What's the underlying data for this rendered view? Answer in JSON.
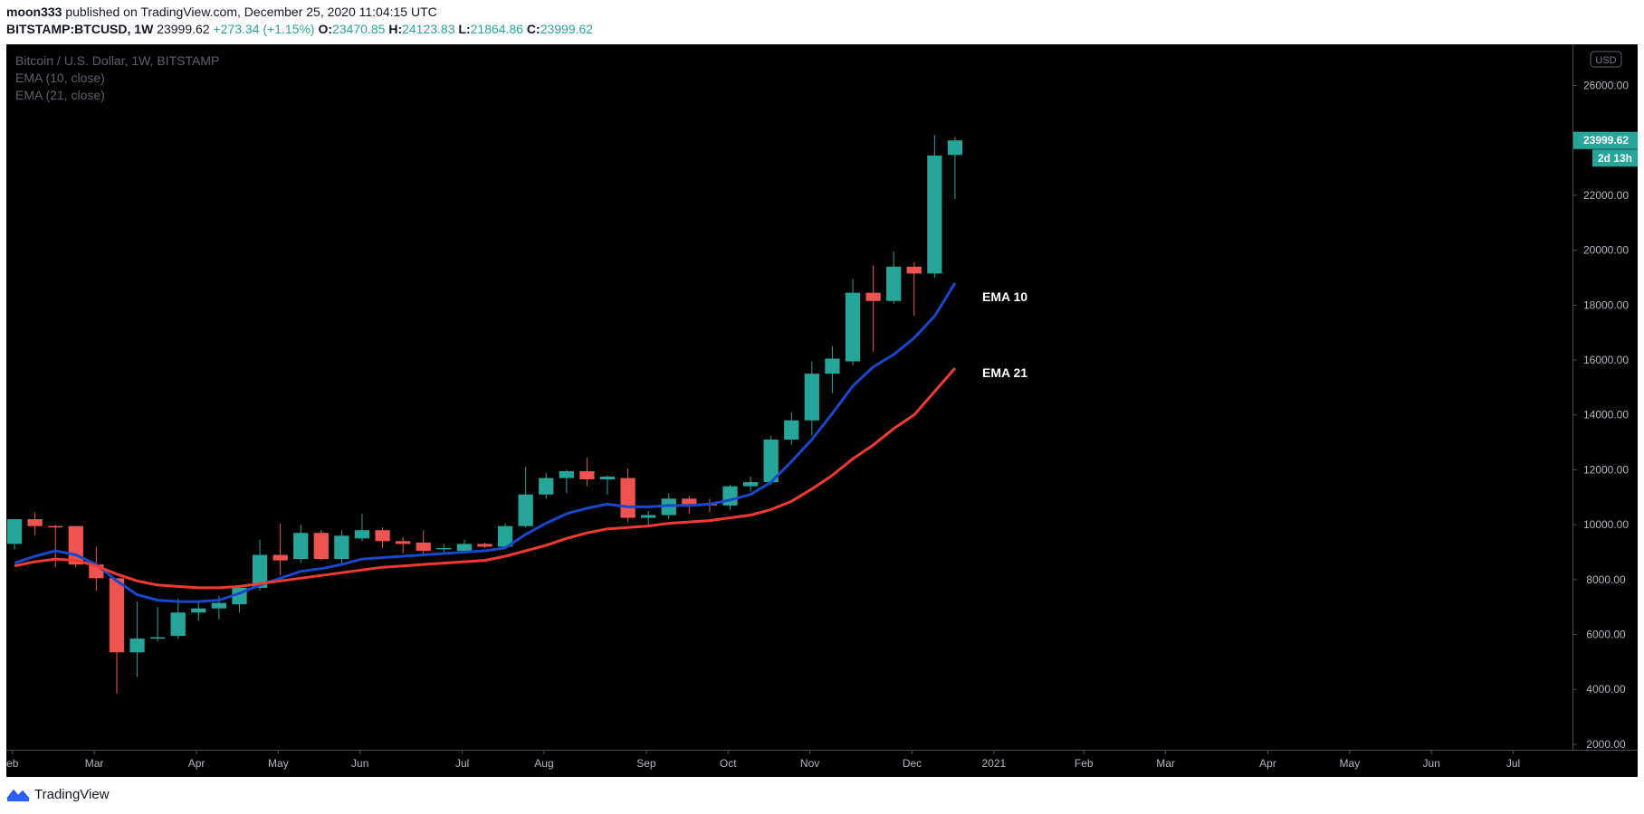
{
  "header": {
    "author": "moon333",
    "published": "published on TradingView.com, December 25, 2020 11:04:15 UTC",
    "symbol": "BITSTAMP:BTCUSD, 1W",
    "price": "23999.62",
    "change": "+273.34 (+1.15%)",
    "o_label": "O:",
    "o": "23470.85",
    "h_label": "H:",
    "h": "24123.83",
    "l_label": "L:",
    "l": "21864.86",
    "c_label": "C:",
    "c": "23999.62"
  },
  "legend": {
    "title": "Bitcoin / U.S. Dollar, 1W, BITSTAMP",
    "ema1": "EMA (10, close)",
    "ema2": "EMA (21, close)"
  },
  "badges": {
    "currency": "USD",
    "price": "23999.62",
    "countdown": "2d 13h"
  },
  "footer": {
    "brand": "TradingView"
  },
  "colors": {
    "up": "#26a69a",
    "down": "#ef5350",
    "ema10": "#1848cc",
    "ema21": "#f23a30",
    "background": "#000000",
    "axis_text": "#b2b5be"
  },
  "chart_data": {
    "type": "candlestick",
    "title": "Bitcoin / U.S. Dollar, 1W, BITSTAMP",
    "ylim": [
      1800,
      27500
    ],
    "y_ticks": [
      2000,
      4000,
      6000,
      8000,
      10000,
      12000,
      14000,
      16000,
      18000,
      20000,
      22000,
      24000,
      26000
    ],
    "y_tick_labels": [
      "2000.00",
      "4000.00",
      "6000.00",
      "8000.00",
      "10000.00",
      "12000.00",
      "14000.00",
      "16000.00",
      "18000.00",
      "20000.00",
      "22000.00",
      "24000.00",
      "26000.00"
    ],
    "x_ticks": [
      {
        "label": "eb",
        "week": -0.1
      },
      {
        "label": "Mar",
        "week": 3.9
      },
      {
        "label": "Apr",
        "week": 8.9
      },
      {
        "label": "May",
        "week": 12.9
      },
      {
        "label": "Jun",
        "week": 16.9
      },
      {
        "label": "Jul",
        "week": 21.9
      },
      {
        "label": "Aug",
        "week": 25.9
      },
      {
        "label": "Sep",
        "week": 30.9
      },
      {
        "label": "Oct",
        "week": 34.9
      },
      {
        "label": "Nov",
        "week": 38.9
      },
      {
        "label": "Dec",
        "week": 43.9
      },
      {
        "label": "2021",
        "week": 47.9
      },
      {
        "label": "Feb",
        "week": 52.3
      },
      {
        "label": "Mar",
        "week": 56.3
      },
      {
        "label": "Apr",
        "week": 61.3
      },
      {
        "label": "May",
        "week": 65.3
      },
      {
        "label": "Jun",
        "week": 69.3
      },
      {
        "label": "Jul",
        "week": 73.3
      }
    ],
    "x_range": [
      -0.4,
      76.2
    ],
    "candles": [
      {
        "o": 9300,
        "h": 10200,
        "l": 9100,
        "c": 10200
      },
      {
        "o": 10200,
        "h": 10450,
        "l": 9600,
        "c": 9950
      },
      {
        "o": 9950,
        "h": 10000,
        "l": 8450,
        "c": 9900
      },
      {
        "o": 9950,
        "h": 9950,
        "l": 8450,
        "c": 8550
      },
      {
        "o": 8550,
        "h": 9200,
        "l": 7600,
        "c": 8050
      },
      {
        "o": 8050,
        "h": 8050,
        "l": 3850,
        "c": 5350
      },
      {
        "o": 5350,
        "h": 7200,
        "l": 4450,
        "c": 5850
      },
      {
        "o": 5850,
        "h": 7000,
        "l": 5750,
        "c": 5900
      },
      {
        "o": 5950,
        "h": 7300,
        "l": 5850,
        "c": 6800
      },
      {
        "o": 6800,
        "h": 7200,
        "l": 6500,
        "c": 6950
      },
      {
        "o": 6950,
        "h": 7400,
        "l": 6550,
        "c": 7150
      },
      {
        "o": 7100,
        "h": 7750,
        "l": 6800,
        "c": 7700
      },
      {
        "o": 7700,
        "h": 9450,
        "l": 7600,
        "c": 8900
      },
      {
        "o": 8900,
        "h": 10050,
        "l": 8150,
        "c": 8700
      },
      {
        "o": 8750,
        "h": 10000,
        "l": 8600,
        "c": 9700
      },
      {
        "o": 9700,
        "h": 9800,
        "l": 8700,
        "c": 8750
      },
      {
        "o": 8750,
        "h": 9800,
        "l": 8500,
        "c": 9600
      },
      {
        "o": 9500,
        "h": 10400,
        "l": 9400,
        "c": 9800
      },
      {
        "o": 9800,
        "h": 9900,
        "l": 9150,
        "c": 9400
      },
      {
        "o": 9400,
        "h": 9550,
        "l": 8950,
        "c": 9300
      },
      {
        "o": 9350,
        "h": 9800,
        "l": 8850,
        "c": 9050
      },
      {
        "o": 9100,
        "h": 9300,
        "l": 8900,
        "c": 9150
      },
      {
        "o": 9050,
        "h": 9450,
        "l": 8950,
        "c": 9300
      },
      {
        "o": 9300,
        "h": 9350,
        "l": 9150,
        "c": 9200
      },
      {
        "o": 9200,
        "h": 10050,
        "l": 9150,
        "c": 9950
      },
      {
        "o": 9950,
        "h": 12100,
        "l": 9900,
        "c": 11100
      },
      {
        "o": 11100,
        "h": 11900,
        "l": 10950,
        "c": 11700
      },
      {
        "o": 11700,
        "h": 12000,
        "l": 11150,
        "c": 11950
      },
      {
        "o": 11950,
        "h": 12450,
        "l": 11400,
        "c": 11650
      },
      {
        "o": 11650,
        "h": 11800,
        "l": 11100,
        "c": 11750
      },
      {
        "o": 11700,
        "h": 12050,
        "l": 10100,
        "c": 10250
      },
      {
        "o": 10250,
        "h": 10500,
        "l": 9900,
        "c": 10350
      },
      {
        "o": 10350,
        "h": 11150,
        "l": 10200,
        "c": 10950
      },
      {
        "o": 10950,
        "h": 11050,
        "l": 10400,
        "c": 10750
      },
      {
        "o": 10750,
        "h": 10950,
        "l": 10450,
        "c": 10700
      },
      {
        "o": 10700,
        "h": 11450,
        "l": 10550,
        "c": 11400
      },
      {
        "o": 11400,
        "h": 11750,
        "l": 11200,
        "c": 11550
      },
      {
        "o": 11550,
        "h": 13250,
        "l": 11450,
        "c": 13100
      },
      {
        "o": 13100,
        "h": 14100,
        "l": 12900,
        "c": 13800
      },
      {
        "o": 13800,
        "h": 15950,
        "l": 13250,
        "c": 15500
      },
      {
        "o": 15500,
        "h": 16500,
        "l": 14800,
        "c": 16050
      },
      {
        "o": 15950,
        "h": 18950,
        "l": 15800,
        "c": 18450
      },
      {
        "o": 18450,
        "h": 19450,
        "l": 16300,
        "c": 18150
      },
      {
        "o": 18150,
        "h": 19950,
        "l": 18050,
        "c": 19400
      },
      {
        "o": 19400,
        "h": 19550,
        "l": 17600,
        "c": 19150
      },
      {
        "o": 19150,
        "h": 24200,
        "l": 19000,
        "c": 23450
      },
      {
        "o": 23470.85,
        "h": 24123.83,
        "l": 21864.86,
        "c": 23999.62
      }
    ],
    "series": [
      {
        "name": "EMA 10",
        "values": [
          8600,
          8850,
          9050,
          8900,
          8550,
          7950,
          7450,
          7250,
          7200,
          7200,
          7250,
          7500,
          7800,
          8050,
          8300,
          8400,
          8550,
          8750,
          8800,
          8850,
          8900,
          8950,
          9000,
          9050,
          9150,
          9650,
          10050,
          10400,
          10600,
          10750,
          10650,
          10650,
          10700,
          10700,
          10750,
          10900,
          11100,
          11550,
          12300,
          13100,
          14050,
          15050,
          15750,
          16200,
          16800,
          17600,
          18800
        ]
      },
      {
        "name": "EMA 21",
        "values": [
          8500,
          8650,
          8750,
          8700,
          8500,
          8200,
          7950,
          7800,
          7750,
          7700,
          7700,
          7750,
          7850,
          7950,
          8050,
          8150,
          8250,
          8350,
          8450,
          8500,
          8550,
          8600,
          8650,
          8700,
          8850,
          9050,
          9250,
          9500,
          9700,
          9850,
          9900,
          9950,
          10050,
          10100,
          10150,
          10250,
          10350,
          10550,
          10850,
          11300,
          11800,
          12400,
          12900,
          13500,
          14000,
          14850,
          15700
        ]
      }
    ],
    "annotations": [
      "EMA 10",
      "EMA 21"
    ]
  }
}
